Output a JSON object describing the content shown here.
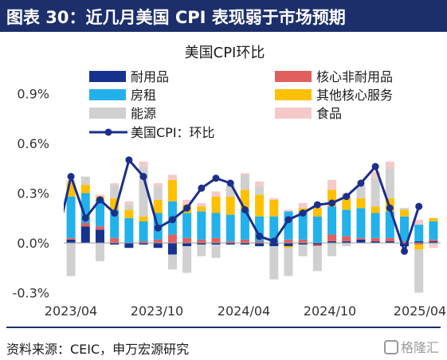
{
  "header": {
    "title": "图表 30：近几月美国 CPI 表现弱于市场预期"
  },
  "footer": {
    "source": "资料来源：CEIC，申万宏源研究",
    "watermark": "格隆汇"
  },
  "colors": {
    "header_bg": "#1c2f6b",
    "durable": "#17328f",
    "core_nondurable": "#e0605f",
    "rent": "#22b1ea",
    "other_core_services": "#ffc000",
    "energy": "#d0d0d0",
    "food": "#f6c9c9",
    "cpi_line": "#1c2f8a",
    "axis_text": "#333333"
  },
  "chart_data": {
    "type": "bar",
    "title": "美国CPI环比",
    "stacked": true,
    "x_ticks": [
      "2023/04",
      "2023/10",
      "2024/04",
      "2024/10",
      "2025/04"
    ],
    "y_ticks": [
      "-0.3%",
      "0.0%",
      "0.3%",
      "0.6%",
      "0.9%"
    ],
    "ylim": [
      -0.3,
      0.9
    ],
    "legend_position": "top",
    "categories": [
      "2023/03",
      "2023/04",
      "2023/05",
      "2023/06",
      "2023/07",
      "2023/08",
      "2023/09",
      "2023/10",
      "2023/11",
      "2023/12",
      "2024/01",
      "2024/02",
      "2024/03",
      "2024/04",
      "2024/05",
      "2024/06",
      "2024/07",
      "2024/08",
      "2024/09",
      "2024/10",
      "2024/11",
      "2024/12",
      "2025/01",
      "2025/02",
      "2025/03",
      "2025/04"
    ],
    "series": [
      {
        "name": "耐用品",
        "key": "durable",
        "color": "#17328f",
        "kind": "bar",
        "values": [
          0.02,
          0.1,
          0.08,
          -0.01,
          -0.03,
          -0.01,
          -0.03,
          -0.07,
          -0.02,
          -0.01,
          -0.01,
          -0.01,
          -0.01,
          -0.02,
          -0.02,
          -0.02,
          -0.01,
          -0.01,
          0.01,
          0.01,
          0.02,
          0.01,
          0.01,
          -0.02,
          0.01,
          0.01
        ]
      },
      {
        "name": "核心非耐用品",
        "key": "core_nondurable",
        "color": "#e0605f",
        "kind": "bar",
        "values": [
          0.01,
          0.02,
          0.02,
          0.03,
          0.0,
          0.01,
          0.02,
          0.05,
          0.03,
          0.02,
          0.03,
          0.01,
          0.02,
          0.01,
          0.0,
          0.02,
          0.02,
          -0.01,
          0.04,
          0.03,
          0.01,
          0.02,
          0.02,
          0.01,
          -0.01,
          0.01
        ]
      },
      {
        "name": "房租",
        "key": "rent",
        "color": "#22b1ea",
        "kind": "bar",
        "values": [
          0.25,
          0.18,
          0.16,
          0.17,
          0.15,
          0.12,
          0.16,
          0.2,
          0.15,
          0.17,
          0.15,
          0.16,
          0.18,
          0.15,
          0.16,
          0.17,
          0.17,
          0.16,
          0.17,
          0.16,
          0.18,
          0.15,
          0.16,
          0.15,
          0.1,
          0.11
        ]
      },
      {
        "name": "其他核心服务",
        "key": "other_core_services",
        "color": "#ffc000",
        "kind": "bar",
        "values": [
          0.08,
          0.05,
          0.02,
          0.07,
          0.05,
          0.03,
          0.08,
          0.13,
          0.05,
          0.03,
          0.1,
          0.11,
          0.12,
          0.13,
          0.1,
          -0.01,
          0.02,
          0.05,
          0.1,
          0.07,
          0.06,
          0.04,
          0.08,
          0.04,
          -0.03,
          0.02
        ]
      },
      {
        "name": "能源",
        "key": "energy",
        "color": "#d0d0d0",
        "kind": "bar",
        "values": [
          -0.2,
          0.05,
          -0.11,
          0.08,
          0.03,
          0.3,
          0.08,
          -0.09,
          -0.16,
          -0.07,
          -0.08,
          0.07,
          0.09,
          0.05,
          -0.2,
          -0.17,
          -0.07,
          -0.15,
          -0.08,
          -0.02,
          0.07,
          0.17,
          0.18,
          0.01,
          -0.26,
          -0.01
        ]
      },
      {
        "name": "食品",
        "key": "food",
        "color": "#f6c9c9",
        "kind": "bar",
        "values": [
          0.02,
          0.0,
          0.01,
          0.01,
          0.02,
          0.03,
          0.02,
          0.03,
          0.03,
          0.02,
          0.03,
          0.0,
          0.01,
          0.03,
          0.01,
          0.01,
          0.03,
          0.01,
          0.06,
          0.03,
          0.01,
          0.04,
          0.04,
          0.0,
          0.03,
          -0.02
        ]
      },
      {
        "name": "美国CPI：环比",
        "key": "cpi_mom",
        "color": "#1c2f8a",
        "kind": "line",
        "values": [
          0.4,
          0.15,
          0.26,
          0.18,
          0.5,
          0.4,
          0.09,
          0.14,
          0.21,
          0.33,
          0.39,
          0.36,
          0.2,
          0.04,
          0.01,
          0.14,
          0.18,
          0.23,
          0.24,
          0.28,
          0.36,
          0.46,
          0.21,
          -0.05,
          0.22,
          null
        ]
      }
    ]
  }
}
